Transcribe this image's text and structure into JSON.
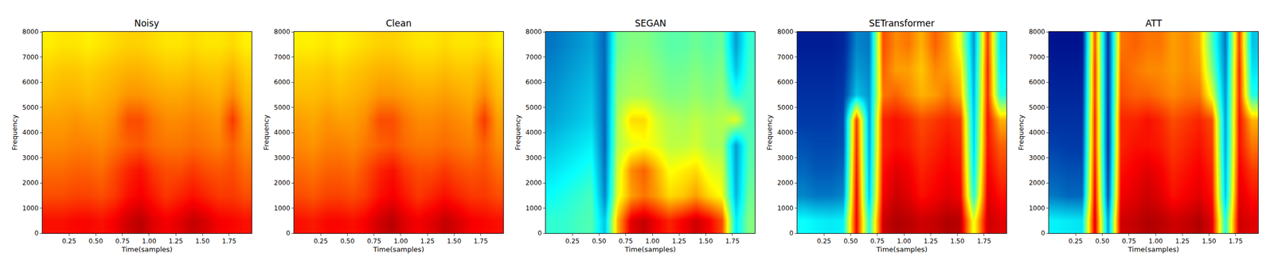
{
  "chart_data": [
    {
      "type": "heatmap",
      "title": "Noisy",
      "x_label": "Time(samples)",
      "y_label": "Frequency",
      "x": [
        0.06,
        0.18,
        0.31,
        0.43,
        0.55,
        0.67,
        0.8,
        0.92,
        1.04,
        1.16,
        1.29,
        1.41,
        1.53,
        1.65,
        1.78,
        1.9
      ],
      "y": [
        500,
        1500,
        2500,
        3500,
        4500,
        5500,
        6500,
        7500
      ],
      "z": [
        [
          86,
          86,
          87,
          87,
          86,
          88,
          92,
          94,
          90,
          88,
          90,
          93,
          91,
          88,
          87,
          86
        ],
        [
          80,
          80,
          81,
          81,
          80,
          82,
          86,
          88,
          85,
          82,
          84,
          86,
          84,
          82,
          82,
          80
        ],
        [
          77,
          77,
          78,
          78,
          77,
          80,
          84,
          86,
          82,
          80,
          80,
          82,
          80,
          79,
          80,
          77
        ],
        [
          74,
          74,
          75,
          75,
          74,
          76,
          78,
          79,
          77,
          76,
          76,
          77,
          76,
          75,
          78,
          74
        ],
        [
          72,
          72,
          73,
          72,
          72,
          74,
          80,
          80,
          76,
          74,
          74,
          75,
          74,
          73,
          82,
          72
        ],
        [
          69,
          70,
          70,
          69,
          70,
          71,
          73,
          73,
          72,
          71,
          71,
          72,
          71,
          70,
          74,
          69
        ],
        [
          67,
          68,
          68,
          67,
          68,
          69,
          70,
          70,
          69,
          68,
          68,
          69,
          68,
          68,
          70,
          67
        ],
        [
          64,
          65,
          65,
          64,
          65,
          66,
          67,
          67,
          66,
          65,
          65,
          66,
          65,
          65,
          66,
          64
        ]
      ],
      "zlim": [
        0,
        100
      ],
      "xlim": [
        0,
        1.96
      ],
      "ylim": [
        0,
        8000
      ],
      "xticks": [
        {
          "value": 0.25,
          "label": "0.25"
        },
        {
          "value": 0.5,
          "label": "0.50"
        },
        0.75,
        {
          "value": 1,
          "label": "1.00"
        },
        1.25,
        {
          "value": 1.5,
          "label": "1.50"
        },
        1.75
      ],
      "yticks": [
        0,
        1000,
        2000,
        3000,
        4000,
        5000,
        6000,
        7000,
        8000
      ]
    },
    {
      "type": "heatmap",
      "title": "Clean",
      "x_label": "Time(samples)",
      "y_label": "Frequency",
      "x": [
        0.06,
        0.18,
        0.31,
        0.43,
        0.55,
        0.67,
        0.8,
        0.92,
        1.04,
        1.16,
        1.29,
        1.41,
        1.53,
        1.65,
        1.78,
        1.9
      ],
      "y": [
        500,
        1500,
        2500,
        3500,
        4500,
        5500,
        6500,
        7500
      ],
      "z": [
        [
          86,
          85,
          87,
          87,
          86,
          88,
          92,
          94,
          90,
          88,
          90,
          93,
          91,
          88,
          87,
          86
        ],
        [
          80,
          79,
          81,
          81,
          80,
          82,
          86,
          88,
          85,
          82,
          84,
          86,
          84,
          82,
          82,
          80
        ],
        [
          77,
          76,
          78,
          78,
          77,
          80,
          84,
          86,
          82,
          80,
          80,
          82,
          80,
          79,
          80,
          77
        ],
        [
          74,
          73,
          75,
          75,
          74,
          76,
          78,
          79,
          77,
          76,
          76,
          77,
          76,
          75,
          78,
          74
        ],
        [
          72,
          71,
          73,
          72,
          72,
          74,
          80,
          80,
          76,
          74,
          74,
          75,
          74,
          73,
          82,
          72
        ],
        [
          69,
          69,
          70,
          69,
          70,
          71,
          73,
          73,
          72,
          71,
          71,
          72,
          71,
          70,
          74,
          69
        ],
        [
          67,
          67,
          68,
          67,
          68,
          69,
          70,
          70,
          69,
          68,
          68,
          69,
          68,
          68,
          70,
          67
        ],
        [
          64,
          64,
          65,
          64,
          65,
          66,
          67,
          67,
          66,
          65,
          65,
          66,
          65,
          65,
          66,
          64
        ]
      ],
      "zlim": [
        0,
        100
      ],
      "xlim": [
        0,
        1.96
      ],
      "ylim": [
        0,
        8000
      ],
      "xticks": [
        {
          "value": 0.25,
          "label": "0.25"
        },
        {
          "value": 0.5,
          "label": "0.50"
        },
        0.75,
        {
          "value": 1,
          "label": "1.00"
        },
        1.25,
        {
          "value": 1.5,
          "label": "1.50"
        },
        1.75
      ],
      "yticks": [
        0,
        1000,
        2000,
        3000,
        4000,
        5000,
        6000,
        7000,
        8000
      ]
    },
    {
      "type": "heatmap",
      "title": "SEGAN",
      "x_label": "Time(samples)",
      "y_label": "Frequency",
      "x": [
        0.06,
        0.18,
        0.31,
        0.43,
        0.55,
        0.67,
        0.8,
        0.92,
        1.04,
        1.16,
        1.29,
        1.41,
        1.53,
        1.65,
        1.78,
        1.9
      ],
      "y": [
        500,
        1500,
        2500,
        3500,
        4500,
        5500,
        6500,
        7500
      ],
      "z": [
        [
          42,
          42,
          44,
          45,
          30,
          70,
          90,
          93,
          88,
          84,
          88,
          92,
          88,
          80,
          35,
          50
        ],
        [
          38,
          40,
          42,
          44,
          22,
          60,
          72,
          76,
          72,
          66,
          68,
          72,
          66,
          62,
          28,
          48
        ],
        [
          34,
          36,
          38,
          40,
          20,
          58,
          74,
          78,
          70,
          62,
          64,
          66,
          60,
          58,
          26,
          46
        ],
        [
          30,
          32,
          34,
          36,
          18,
          55,
          60,
          62,
          60,
          56,
          56,
          58,
          54,
          54,
          25,
          45
        ],
        [
          26,
          28,
          30,
          32,
          18,
          54,
          66,
          66,
          58,
          55,
          54,
          56,
          54,
          55,
          60,
          44
        ],
        [
          24,
          26,
          28,
          30,
          18,
          52,
          54,
          54,
          52,
          50,
          50,
          52,
          50,
          52,
          40,
          44
        ],
        [
          22,
          24,
          26,
          28,
          18,
          50,
          52,
          52,
          50,
          48,
          48,
          50,
          48,
          50,
          30,
          43
        ],
        [
          20,
          22,
          24,
          26,
          18,
          48,
          50,
          50,
          48,
          46,
          46,
          48,
          46,
          48,
          25,
          42
        ]
      ],
      "zlim": [
        0,
        100
      ],
      "xlim": [
        0,
        1.96
      ],
      "ylim": [
        0,
        8000
      ],
      "xticks": [
        {
          "value": 0.25,
          "label": "0.25"
        },
        {
          "value": 0.5,
          "label": "0.50"
        },
        0.75,
        {
          "value": 1,
          "label": "1.00"
        },
        1.25,
        {
          "value": 1.5,
          "label": "1.50"
        },
        1.75
      ],
      "yticks": [
        0,
        1000,
        2000,
        3000,
        4000,
        5000,
        6000,
        7000,
        8000
      ]
    },
    {
      "type": "heatmap",
      "title": "SETransformer",
      "x_label": "Time(samples)",
      "y_label": "Frequency",
      "x": [
        0.06,
        0.18,
        0.31,
        0.43,
        0.55,
        0.67,
        0.8,
        0.92,
        1.04,
        1.16,
        1.29,
        1.41,
        1.53,
        1.65,
        1.78,
        1.9
      ],
      "y": [
        500,
        1500,
        2500,
        3500,
        4500,
        5500,
        6500,
        7500
      ],
      "z": [
        [
          38,
          36,
          35,
          36,
          88,
          40,
          92,
          95,
          94,
          92,
          93,
          95,
          94,
          60,
          92,
          90
        ],
        [
          22,
          20,
          20,
          22,
          88,
          30,
          88,
          92,
          90,
          86,
          88,
          90,
          88,
          40,
          90,
          86
        ],
        [
          18,
          16,
          16,
          18,
          86,
          28,
          86,
          90,
          88,
          84,
          86,
          88,
          86,
          35,
          88,
          82
        ],
        [
          15,
          14,
          14,
          15,
          84,
          26,
          84,
          86,
          85,
          82,
          84,
          86,
          84,
          32,
          86,
          78
        ],
        [
          12,
          12,
          12,
          14,
          82,
          25,
          84,
          86,
          84,
          80,
          82,
          84,
          82,
          30,
          86,
          70
        ],
        [
          10,
          10,
          10,
          12,
          30,
          24,
          76,
          78,
          74,
          70,
          72,
          76,
          70,
          28,
          84,
          40
        ],
        [
          8,
          8,
          8,
          10,
          25,
          22,
          78,
          72,
          72,
          68,
          74,
          72,
          66,
          26,
          84,
          36
        ],
        [
          6,
          6,
          6,
          8,
          22,
          20,
          80,
          74,
          76,
          70,
          78,
          72,
          60,
          24,
          82,
          34
        ]
      ],
      "zlim": [
        0,
        100
      ],
      "xlim": [
        0,
        1.96
      ],
      "ylim": [
        0,
        8000
      ],
      "xticks": [
        {
          "value": 0.25,
          "label": "0.25"
        },
        {
          "value": 0.5,
          "label": "0.50"
        },
        0.75,
        {
          "value": 1,
          "label": "1.00"
        },
        1.25,
        {
          "value": 1.5,
          "label": "1.50"
        },
        1.75
      ],
      "yticks": [
        0,
        1000,
        2000,
        3000,
        4000,
        5000,
        6000,
        7000,
        8000
      ]
    },
    {
      "type": "heatmap",
      "title": "ATT",
      "x_label": "Time(samples)",
      "y_label": "Frequency",
      "x": [
        0.06,
        0.18,
        0.31,
        0.43,
        0.55,
        0.67,
        0.8,
        0.92,
        1.04,
        1.16,
        1.29,
        1.41,
        1.53,
        1.65,
        1.78,
        1.9
      ],
      "y": [
        500,
        1500,
        2500,
        3500,
        4500,
        5500,
        6500,
        7500
      ],
      "z": [
        [
          36,
          35,
          34,
          90,
          25,
          92,
          93,
          95,
          94,
          92,
          93,
          95,
          90,
          40,
          92,
          90
        ],
        [
          20,
          18,
          18,
          88,
          15,
          88,
          90,
          92,
          90,
          86,
          88,
          90,
          86,
          30,
          90,
          86
        ],
        [
          16,
          15,
          15,
          86,
          12,
          86,
          88,
          90,
          88,
          84,
          86,
          88,
          84,
          28,
          88,
          82
        ],
        [
          13,
          12,
          12,
          84,
          10,
          84,
          86,
          86,
          85,
          82,
          84,
          86,
          82,
          26,
          86,
          76
        ],
        [
          10,
          10,
          10,
          84,
          10,
          84,
          84,
          86,
          84,
          80,
          82,
          84,
          80,
          25,
          86,
          70
        ],
        [
          8,
          8,
          8,
          82,
          10,
          80,
          78,
          78,
          76,
          74,
          76,
          76,
          60,
          24,
          84,
          40
        ],
        [
          6,
          6,
          6,
          82,
          10,
          78,
          76,
          74,
          74,
          72,
          74,
          72,
          50,
          22,
          84,
          34
        ],
        [
          4,
          4,
          4,
          80,
          10,
          76,
          78,
          76,
          76,
          72,
          74,
          70,
          45,
          20,
          82,
          30
        ]
      ],
      "zlim": [
        0,
        100
      ],
      "xlim": [
        0,
        1.96
      ],
      "ylim": [
        0,
        8000
      ],
      "xticks": [
        {
          "value": 0.25,
          "label": "0.25"
        },
        {
          "value": 0.5,
          "label": "0.50"
        },
        0.75,
        {
          "value": 1,
          "label": "1.00"
        },
        1.25,
        {
          "value": 1.5,
          "label": "1.50"
        },
        1.75
      ],
      "yticks": [
        0,
        1000,
        2000,
        3000,
        4000,
        5000,
        6000,
        7000,
        8000
      ]
    }
  ]
}
